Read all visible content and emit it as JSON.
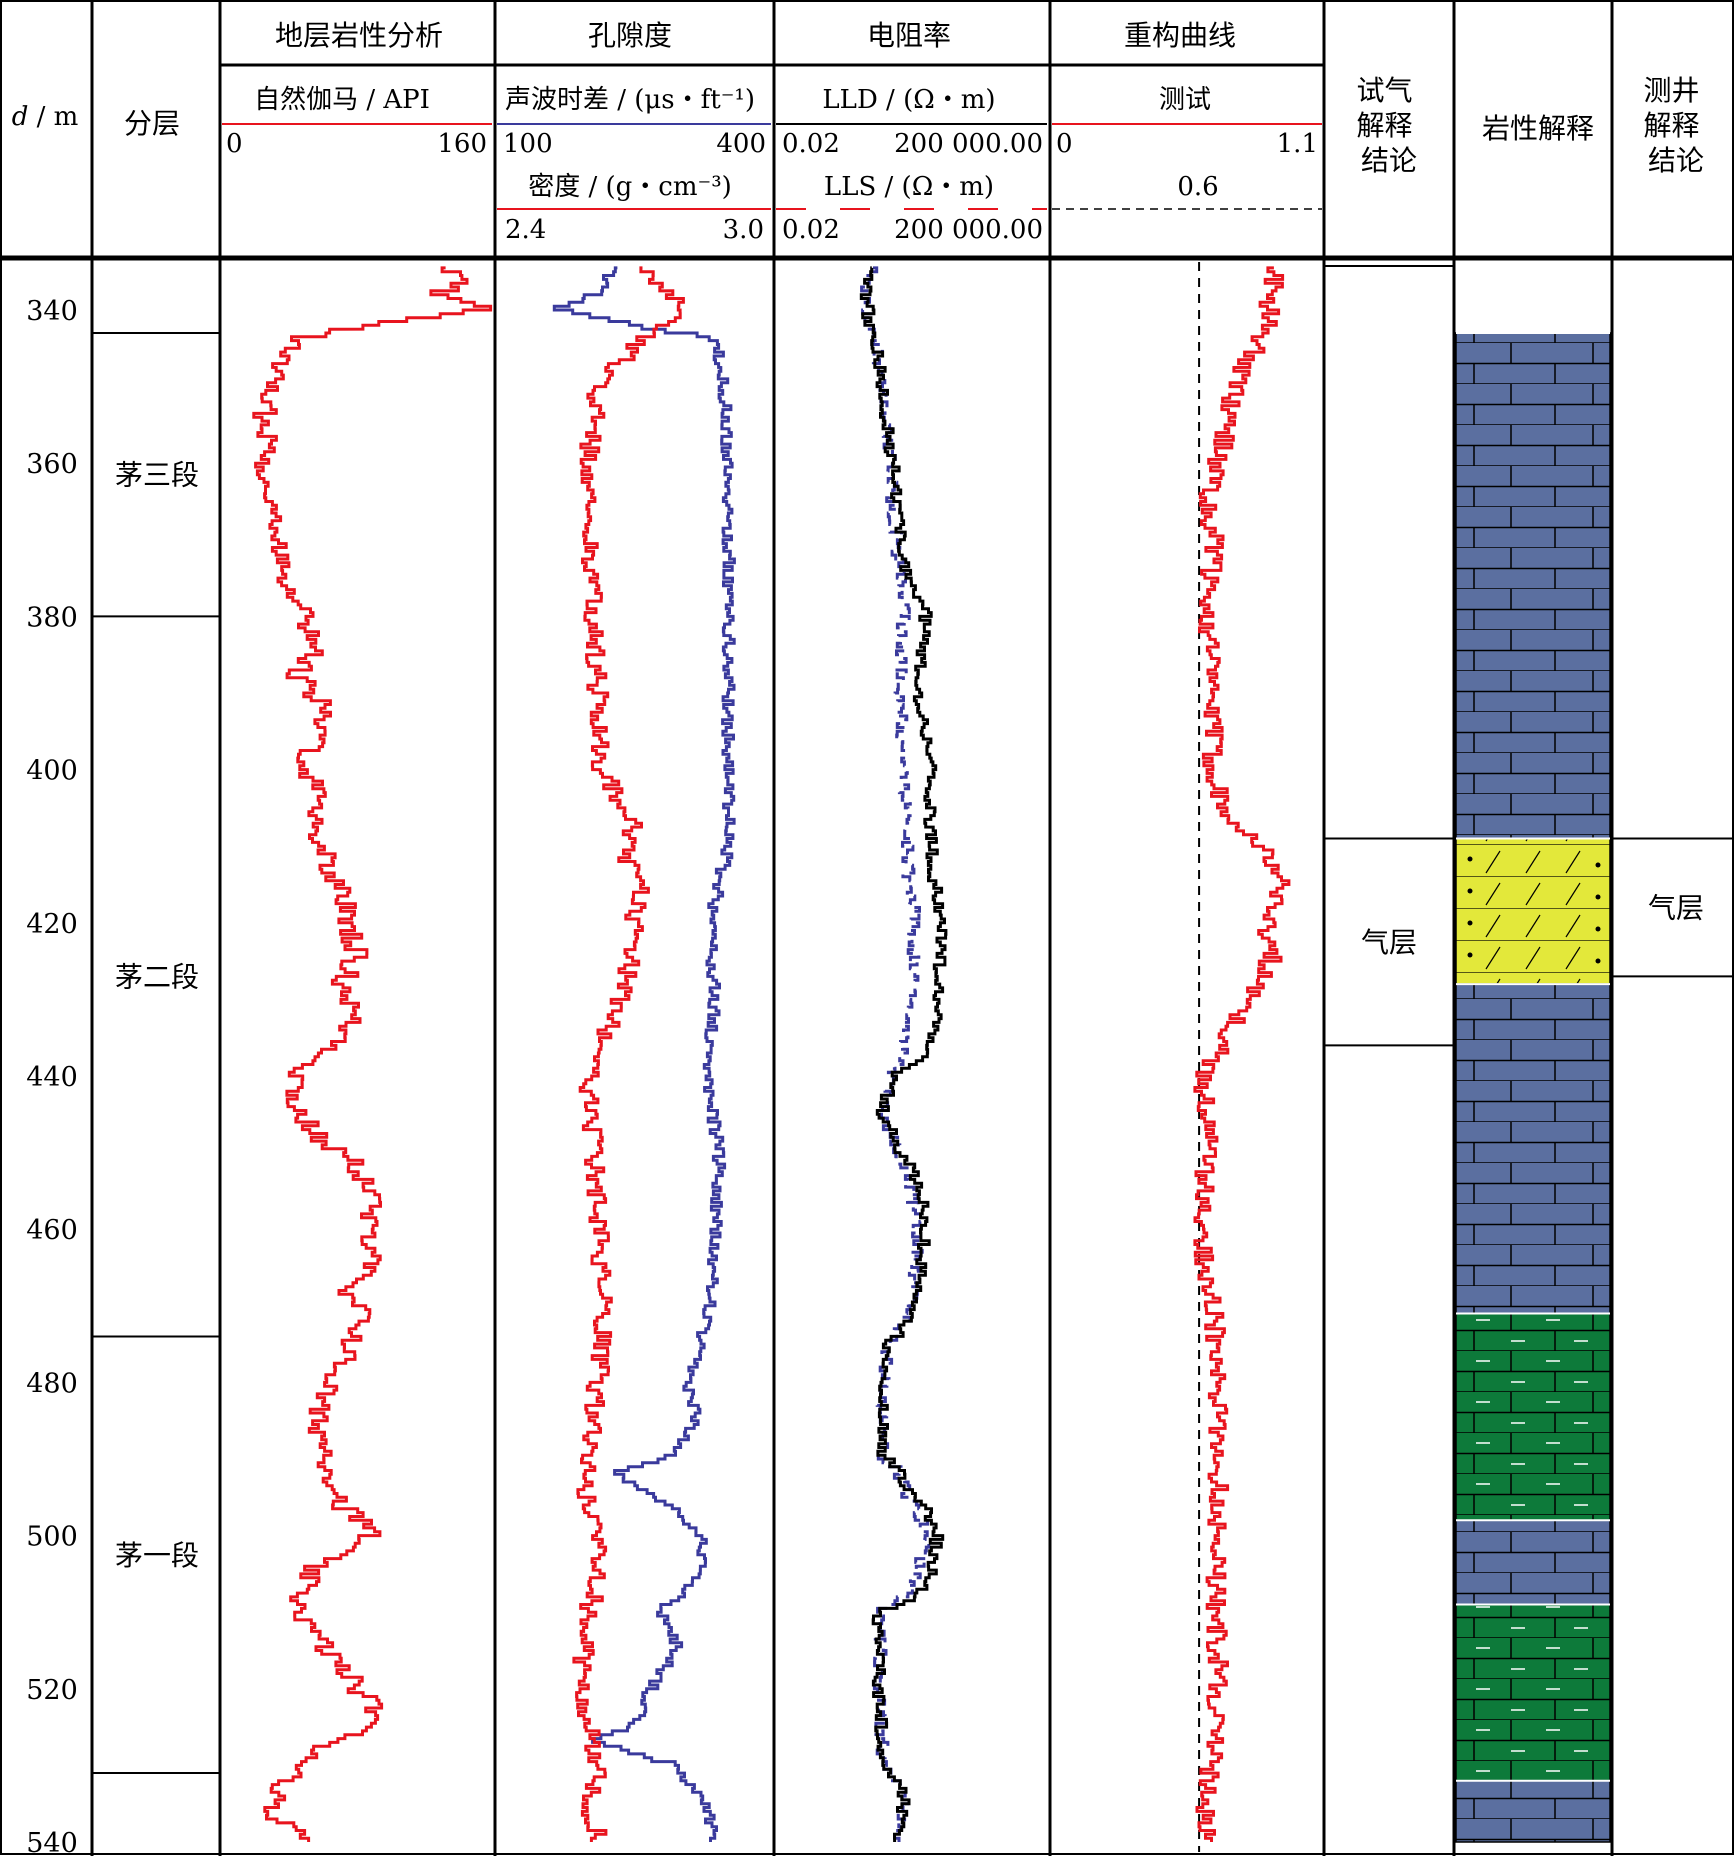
{
  "colors": {
    "red": "#e8141e",
    "blue": "#3a3a9c",
    "black": "#000000",
    "limestone": "#5b6fa0",
    "sandstone": "#e3e83a",
    "dolomite": "#0d7a3a"
  },
  "header": {
    "depth_label_italic": "d",
    "depth_label_unit": " / m",
    "zone_col": "分层",
    "track1_title": "地层岩性分析",
    "track2_title": "孔隙度",
    "track3_title": "电阻率",
    "track4_title": "重构曲线",
    "gas_test_col": [
      "试气",
      "解释",
      "结论"
    ],
    "lith_col": "岩性解释",
    "log_interp_col": [
      "测井",
      "解释",
      "结论"
    ]
  },
  "curves": {
    "gr": {
      "label": "自然伽马 / API",
      "min": "0",
      "max": "160"
    },
    "ac": {
      "label": "声波时差 / (μs・ft⁻¹)",
      "min": "100",
      "max": "400"
    },
    "den": {
      "label": "密度 / (g・cm⁻³)",
      "min": "2.4",
      "max": "3.0"
    },
    "lld": {
      "label": "LLD / (Ω・m)",
      "min": "0.02",
      "max": "200 000.00"
    },
    "lls": {
      "label": "LLS / (Ω・m)",
      "min": "0.02",
      "max": "200 000.00"
    },
    "test": {
      "label": "测试",
      "min": "0",
      "max": "1.1",
      "cutoff": "0.6"
    }
  },
  "zones": [
    {
      "name": "茅三段",
      "top": 343,
      "bottom": 380
    },
    {
      "name": "茅二段",
      "top": 380,
      "bottom": 474
    },
    {
      "name": "茅一段",
      "top": 474,
      "bottom": 531
    }
  ],
  "gas_test": [
    {
      "text": "气层",
      "top": 409,
      "bottom": 436
    }
  ],
  "log_interp": [
    {
      "text": "气层",
      "top": 409,
      "bottom": 427
    }
  ],
  "lithology": [
    {
      "type": "limestone",
      "top": 343,
      "bottom": 409
    },
    {
      "type": "sandstone",
      "top": 409,
      "bottom": 428
    },
    {
      "type": "limestone",
      "top": 428,
      "bottom": 471
    },
    {
      "type": "dolomite",
      "top": 471,
      "bottom": 498
    },
    {
      "type": "limestone",
      "top": 498,
      "bottom": 509
    },
    {
      "type": "dolomite",
      "top": 509,
      "bottom": 532
    },
    {
      "type": "limestone",
      "top": 532,
      "bottom": 540
    }
  ],
  "chart_data": {
    "type": "line",
    "depth_axis": {
      "label": "d / m",
      "ticks": [
        340,
        360,
        380,
        400,
        420,
        440,
        460,
        480,
        500,
        520,
        540
      ],
      "range": [
        330,
        540
      ]
    },
    "series": [
      {
        "name": "自然伽马",
        "unit": "API",
        "range": [
          0,
          160
        ],
        "color": "#e8141e",
        "depth": [
          330,
          332,
          334,
          336,
          338,
          340,
          342,
          344,
          348,
          352,
          356,
          360,
          364,
          368,
          372,
          376,
          380,
          384,
          388,
          392,
          396,
          400,
          404,
          408,
          412,
          416,
          420,
          424,
          428,
          432,
          436,
          440,
          444,
          448,
          452,
          456,
          460,
          464,
          468,
          472,
          476,
          480,
          484,
          488,
          492,
          496,
          500,
          504,
          508,
          512,
          516,
          520,
          524,
          528,
          532,
          536,
          540
        ],
        "values": [
          40,
          60,
          120,
          150,
          130,
          155,
          100,
          40,
          35,
          22,
          28,
          24,
          30,
          28,
          35,
          40,
          50,
          55,
          45,
          60,
          55,
          50,
          58,
          55,
          62,
          70,
          75,
          80,
          72,
          78,
          70,
          45,
          42,
          55,
          80,
          90,
          85,
          95,
          70,
          85,
          75,
          65,
          55,
          60,
          65,
          70,
          90,
          55,
          45,
          50,
          65,
          80,
          95,
          60,
          40,
          25,
          55
        ]
      },
      {
        "name": "声波时差",
        "unit": "μs/ft",
        "range": [
          100,
          400
        ],
        "color": "#3a3a9c",
        "depth": [
          330,
          334,
          338,
          340,
          342,
          344,
          350,
          360,
          370,
          380,
          390,
          400,
          410,
          420,
          430,
          440,
          450,
          460,
          470,
          480,
          485,
          490,
          492,
          495,
          500,
          505,
          510,
          515,
          520,
          525,
          527,
          530,
          535,
          540
        ],
        "values": [
          235,
          230,
          210,
          165,
          240,
          340,
          350,
          355,
          355,
          355,
          355,
          355,
          355,
          335,
          340,
          330,
          345,
          340,
          335,
          310,
          320,
          290,
          225,
          275,
          325,
          330,
          280,
          300,
          270,
          250,
          200,
          290,
          330,
          340
        ]
      },
      {
        "name": "密度",
        "unit": "g/cm³",
        "range": [
          2.4,
          3.0
        ],
        "color": "#e8141e",
        "depth": [
          330,
          334,
          338,
          340,
          344,
          350,
          360,
          370,
          380,
          390,
          400,
          408,
          412,
          416,
          420,
          424,
          428,
          432,
          440,
          450,
          460,
          470,
          480,
          490,
          495,
          500,
          505,
          510,
          520,
          525,
          530,
          535,
          540
        ],
        "values": [
          2.64,
          2.7,
          2.78,
          2.82,
          2.72,
          2.62,
          2.6,
          2.6,
          2.61,
          2.62,
          2.63,
          2.7,
          2.68,
          2.72,
          2.7,
          2.7,
          2.68,
          2.66,
          2.6,
          2.61,
          2.62,
          2.63,
          2.62,
          2.6,
          2.59,
          2.62,
          2.63,
          2.6,
          2.58,
          2.6,
          2.62,
          2.6,
          2.62
        ]
      },
      {
        "name": "LLD",
        "unit": "Ω·m",
        "scale": "log",
        "range": [
          0.02,
          200000
        ],
        "color": "#000000",
        "depth": [
          330,
          334,
          338,
          342,
          346,
          350,
          355,
          360,
          365,
          370,
          375,
          380,
          385,
          390,
          395,
          400,
          405,
          410,
          415,
          420,
          425,
          430,
          435,
          440,
          445,
          450,
          455,
          460,
          465,
          470,
          475,
          480,
          485,
          490,
          495,
          500,
          505,
          510,
          515,
          520,
          525,
          530,
          535,
          540
        ],
        "values": [
          8,
          6,
          4,
          5,
          8,
          10,
          15,
          20,
          25,
          35,
          50,
          150,
          120,
          100,
          130,
          200,
          180,
          210,
          250,
          400,
          350,
          300,
          250,
          20,
          10,
          30,
          100,
          150,
          120,
          80,
          15,
          12,
          10,
          12,
          60,
          300,
          200,
          8,
          10,
          8,
          10,
          12,
          40,
          30
        ]
      },
      {
        "name": "LLS",
        "unit": "Ω·m",
        "scale": "log",
        "range": [
          0.02,
          200000
        ],
        "color": "#3a3a9c",
        "depth": [
          330,
          334,
          338,
          342,
          346,
          350,
          355,
          360,
          365,
          370,
          375,
          380,
          385,
          390,
          395,
          400,
          405,
          410,
          415,
          420,
          425,
          430,
          435,
          440,
          445,
          450,
          455,
          460,
          465,
          470,
          475,
          480,
          485,
          490,
          495,
          500,
          505,
          510,
          515,
          520,
          525,
          530,
          535,
          540
        ],
        "values": [
          8,
          6,
          4,
          5,
          8,
          10,
          15,
          18,
          20,
          25,
          30,
          40,
          35,
          30,
          35,
          40,
          45,
          50,
          55,
          80,
          70,
          60,
          50,
          18,
          10,
          25,
          60,
          90,
          80,
          60,
          15,
          12,
          10,
          12,
          50,
          150,
          100,
          8,
          10,
          8,
          10,
          12,
          35,
          25
        ]
      },
      {
        "name": "测试",
        "range": [
          0,
          1.1
        ],
        "color": "#e8141e",
        "depth": [
          330,
          334,
          338,
          342,
          346,
          350,
          355,
          360,
          365,
          370,
          380,
          390,
          400,
          405,
          410,
          415,
          420,
          425,
          430,
          435,
          440,
          450,
          460,
          470,
          480,
          490,
          500,
          510,
          520,
          530,
          535,
          540
        ],
        "values": [
          0.95,
          0.92,
          0.9,
          0.88,
          0.82,
          0.75,
          0.72,
          0.68,
          0.62,
          0.66,
          0.64,
          0.65,
          0.66,
          0.7,
          0.85,
          0.95,
          0.88,
          0.9,
          0.8,
          0.72,
          0.62,
          0.64,
          0.6,
          0.66,
          0.67,
          0.68,
          0.68,
          0.67,
          0.68,
          0.65,
          0.62,
          0.64
        ]
      }
    ],
    "reference_lines": [
      {
        "track": "重构曲线",
        "value": 0.6,
        "style": "dashed"
      }
    ]
  }
}
